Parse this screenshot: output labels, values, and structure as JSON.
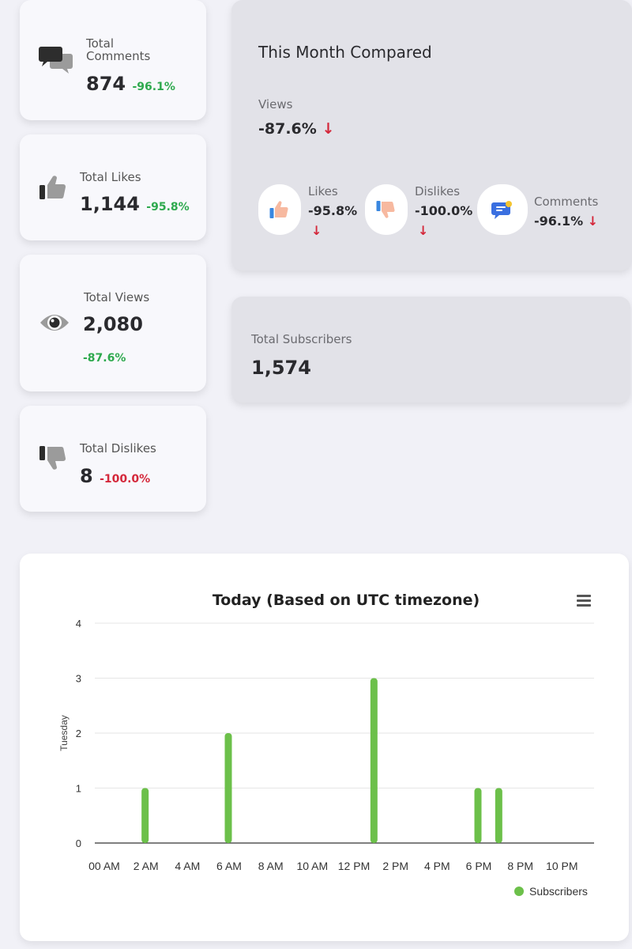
{
  "stats": {
    "comments": {
      "label": "Total Comments",
      "value": "874",
      "change": "-96.1%"
    },
    "likes": {
      "label": "Total Likes",
      "value": "1,144",
      "change": "-95.8%"
    },
    "views": {
      "label": "Total Views",
      "value": "2,080",
      "change": "-87.6%"
    },
    "dislikes": {
      "label": "Total Dislikes",
      "value": "8",
      "change": "-100.0%"
    }
  },
  "compare": {
    "title": "This Month Compared",
    "views_label": "Views",
    "views_change": "-87.6%",
    "likes_label": "Likes",
    "likes_change": "-95.8%",
    "dislikes_label": "Dislikes",
    "dislikes_change": "-100.0%",
    "comments_label": "Comments",
    "comments_change": "-96.1%",
    "arrow": "↓"
  },
  "subscribers": {
    "label": "Total Subscribers",
    "value": "1,574"
  },
  "colors": {
    "positive": "#2ea94e",
    "negative": "#d4283b",
    "bar": "#6cc04a"
  },
  "icons": [
    "comments-icon",
    "thumbs-up-icon",
    "eye-icon",
    "thumbs-down-icon",
    "menu-icon"
  ],
  "chart_data": {
    "type": "bar",
    "title": "Today (Based on UTC timezone)",
    "ylabel": "Tuesday",
    "xlabel": "",
    "x_tick_labels": [
      "00 AM",
      "2 AM",
      "4 AM",
      "6 AM",
      "8 AM",
      "10 AM",
      "12 PM",
      "2 PM",
      "4 PM",
      "6 PM",
      "8 PM",
      "10 PM"
    ],
    "y_ticks": [
      0,
      1,
      2,
      3,
      4
    ],
    "ylim": [
      0,
      4
    ],
    "hours": [
      0,
      1,
      2,
      3,
      4,
      5,
      6,
      7,
      8,
      9,
      10,
      11,
      12,
      13,
      14,
      15,
      16,
      17,
      18,
      19,
      20,
      21,
      22,
      23
    ],
    "series": [
      {
        "name": "Subscribers",
        "values": [
          0,
          0,
          1,
          0,
          0,
          0,
          2,
          0,
          0,
          0,
          0,
          0,
          0,
          3,
          0,
          0,
          0,
          0,
          1,
          1,
          0,
          0,
          0,
          0
        ]
      }
    ],
    "grid": true,
    "legend": "bottom-right"
  }
}
